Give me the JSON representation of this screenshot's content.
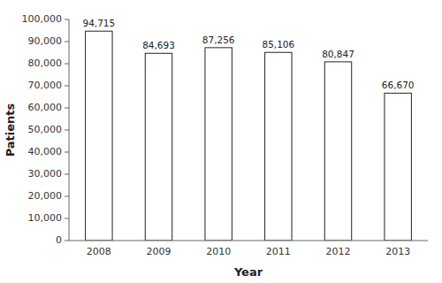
{
  "chart_data": {
    "type": "bar",
    "categories": [
      "2008",
      "2009",
      "2010",
      "2011",
      "2012",
      "2013"
    ],
    "values": [
      94715,
      84693,
      87256,
      85106,
      80847,
      66670
    ],
    "value_labels": [
      "94,715",
      "84,693",
      "87,256",
      "85,106",
      "80,847",
      "66,670"
    ],
    "data_labels": true,
    "color": "#ffffff",
    "xlabel": "Year",
    "ylabel": "Patients",
    "ylim": [
      0,
      100000
    ],
    "yticks": [
      0,
      {
        "value": 10000,
        "label": "10,000"
      },
      {
        "value": 20000,
        "label": "20,000"
      },
      {
        "value": 30000,
        "label": "30,000"
      },
      {
        "value": 40000,
        "label": "40,000"
      },
      {
        "value": 50000,
        "label": "50,000"
      },
      {
        "value": 60000,
        "label": "60,000"
      },
      {
        "value": 70000,
        "label": "70,000"
      },
      {
        "value": 80000,
        "label": "80,000"
      },
      {
        "value": 90000,
        "label": "90,000"
      },
      {
        "value": 100000,
        "label": "100,000"
      }
    ],
    "grid": false
  }
}
